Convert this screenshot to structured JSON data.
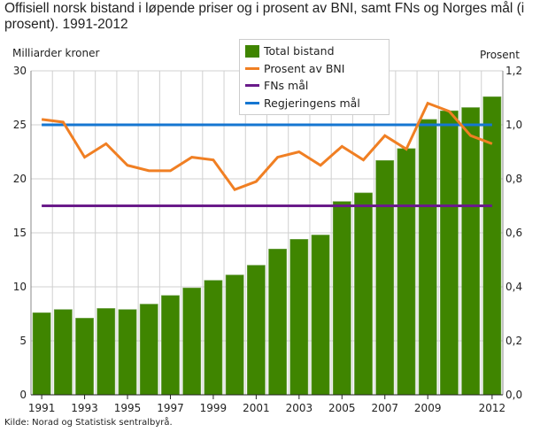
{
  "title": "Offisiell norsk bistand i løpende priser og i prosent av BNI, samt FNs og Norges mål (i prosent). 1991-2012",
  "source": "Kilde: Norad og Statistisk sentralbyrå.",
  "colors": {
    "bars": "#3f8500",
    "percent": "#f07f23",
    "fn": "#6a1b8a",
    "gov": "#1576d1"
  },
  "chart_data": {
    "type": "bar",
    "categories": [
      "1991",
      "1992",
      "1993",
      "1994",
      "1995",
      "1996",
      "1997",
      "1998",
      "1999",
      "2000",
      "2001",
      "2002",
      "2003",
      "2004",
      "2005",
      "2006",
      "2007",
      "2008",
      "2009",
      "2010",
      "2011",
      "2012"
    ],
    "x_tick_labels": [
      "1991",
      "1993",
      "1995",
      "1997",
      "1999",
      "2001",
      "2003",
      "2005",
      "2007",
      "2009",
      "2012"
    ],
    "ylabel_left": "Milliarder kroner",
    "ylabel_right": "Prosent",
    "ylim_left": [
      0,
      30
    ],
    "ylim_right": [
      0,
      1.2
    ],
    "yticks_left": [
      "0",
      "5",
      "10",
      "15",
      "20",
      "25",
      "30"
    ],
    "yticks_right": [
      "0,0",
      "0,2",
      "0,4",
      "0,6",
      "0,8",
      "1,0",
      "1,2"
    ],
    "grid": true,
    "legend_position": "top-center",
    "series": [
      {
        "name": "Total bistand",
        "type": "bar",
        "axis": "left",
        "values": [
          7.6,
          7.9,
          7.1,
          8.0,
          7.9,
          8.4,
          9.2,
          9.9,
          10.6,
          11.1,
          12.0,
          13.5,
          14.4,
          14.8,
          17.9,
          18.7,
          21.7,
          22.8,
          25.5,
          26.3,
          26.6,
          27.6
        ]
      },
      {
        "name": "Prosent av BNI",
        "type": "line",
        "axis": "right",
        "values": [
          1.02,
          1.01,
          0.88,
          0.93,
          0.85,
          0.83,
          0.83,
          0.88,
          0.87,
          0.76,
          0.79,
          0.88,
          0.9,
          0.85,
          0.92,
          0.87,
          0.96,
          0.91,
          1.08,
          1.05,
          0.96,
          0.93
        ]
      },
      {
        "name": "FNs mål",
        "type": "line",
        "axis": "right",
        "values": [
          0.7,
          0.7,
          0.7,
          0.7,
          0.7,
          0.7,
          0.7,
          0.7,
          0.7,
          0.7,
          0.7,
          0.7,
          0.7,
          0.7,
          0.7,
          0.7,
          0.7,
          0.7,
          0.7,
          0.7,
          0.7,
          0.7
        ]
      },
      {
        "name": "Regjeringens mål",
        "type": "line",
        "axis": "right",
        "values": [
          1.0,
          1.0,
          1.0,
          1.0,
          1.0,
          1.0,
          1.0,
          1.0,
          1.0,
          1.0,
          1.0,
          1.0,
          1.0,
          1.0,
          1.0,
          1.0,
          1.0,
          1.0,
          1.0,
          1.0,
          1.0,
          1.0
        ]
      }
    ]
  }
}
